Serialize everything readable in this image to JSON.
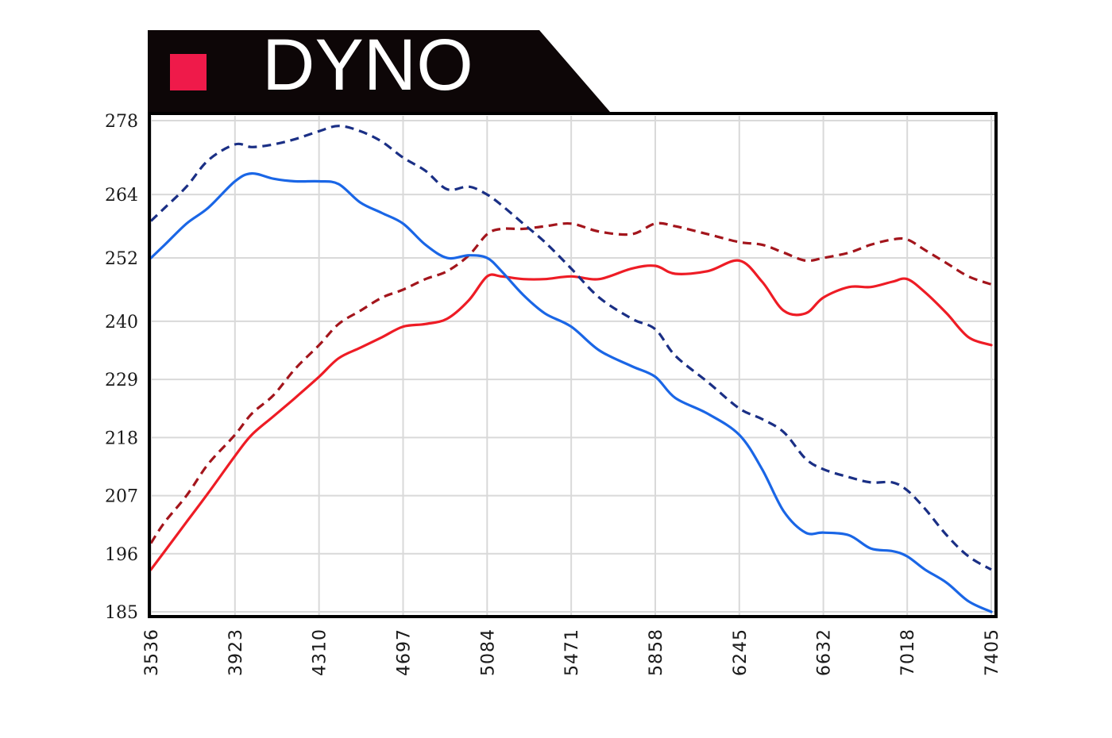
{
  "title": "DYNO",
  "colors": {
    "banner": "#0d0607",
    "accent": "#ef1a4a",
    "grid": "#d9d9d9",
    "frame": "#000000",
    "red": "#ee1c25",
    "dark_red": "#a3151c",
    "blue": "#1a66e6",
    "navy": "#1a2f85"
  },
  "chart_data": {
    "type": "line",
    "title": "DYNO",
    "xlabel": "",
    "ylabel": "",
    "x_ticks": [
      "3536",
      "3923",
      "4310",
      "4697",
      "5084",
      "5471",
      "5858",
      "6245",
      "6632",
      "7018",
      "7405"
    ],
    "y_ticks": [
      "278",
      "264",
      "252",
      "240",
      "229",
      "218",
      "207",
      "196",
      "185"
    ],
    "xlim": [
      3536,
      7405
    ],
    "ylim": [
      185,
      278
    ],
    "grid": true,
    "series": [
      {
        "style": "solid",
        "color": "#ee1c25",
        "x": [
          3536,
          3600,
          3700,
          3800,
          3923,
          4000,
          4100,
          4200,
          4310,
          4400,
          4500,
          4600,
          4697,
          4800,
          4900,
          5000,
          5084,
          5150,
          5250,
          5350,
          5471,
          5600,
          5750,
          5858,
          5950,
          6100,
          6245,
          6350,
          6450,
          6550,
          6632,
          6750,
          6850,
          6950,
          7018,
          7100,
          7200,
          7300,
          7405
        ],
        "y": [
          193,
          196.5,
          202,
          207.5,
          214.5,
          218.5,
          222,
          225.5,
          229.5,
          233,
          235,
          237,
          239,
          239.5,
          240.5,
          244,
          248.5,
          248.5,
          248,
          248,
          248.5,
          248,
          250,
          250.5,
          249,
          249.5,
          251.5,
          247.5,
          242,
          241.5,
          244.5,
          246.5,
          246.5,
          247.5,
          248,
          245.5,
          241.5,
          237,
          235.5
        ]
      },
      {
        "style": "dashed",
        "color": "#a3151c",
        "x": [
          3536,
          3600,
          3700,
          3800,
          3923,
          4000,
          4100,
          4200,
          4310,
          4400,
          4500,
          4600,
          4697,
          4800,
          4900,
          5000,
          5084,
          5150,
          5250,
          5350,
          5471,
          5600,
          5750,
          5858,
          5950,
          6100,
          6245,
          6350,
          6450,
          6550,
          6632,
          6750,
          6850,
          6950,
          7018,
          7100,
          7200,
          7300,
          7405
        ],
        "y": [
          198,
          202,
          207,
          213,
          218.5,
          222.5,
          226,
          231,
          235.5,
          239.5,
          242,
          244.5,
          246,
          248,
          249.5,
          252.5,
          256.5,
          257.5,
          257.5,
          258,
          258.5,
          257,
          256.5,
          258.5,
          258,
          256.5,
          255,
          254.5,
          253,
          251.5,
          252,
          253,
          254.5,
          255.5,
          255.5,
          253.5,
          251,
          248.5,
          247
        ]
      },
      {
        "style": "solid",
        "color": "#1a66e6",
        "x": [
          3536,
          3600,
          3700,
          3800,
          3923,
          4000,
          4100,
          4200,
          4310,
          4400,
          4500,
          4600,
          4697,
          4800,
          4900,
          5000,
          5084,
          5150,
          5250,
          5350,
          5471,
          5600,
          5750,
          5858,
          5950,
          6100,
          6245,
          6350,
          6450,
          6550,
          6632,
          6750,
          6850,
          6950,
          7018,
          7100,
          7200,
          7300,
          7405
        ],
        "y": [
          252,
          254.5,
          258.5,
          261.5,
          266.5,
          268,
          267,
          266.5,
          266.5,
          266,
          262.5,
          260.5,
          258.5,
          254.5,
          252,
          252.5,
          252,
          249.5,
          245,
          241.5,
          239,
          234.5,
          231.5,
          229.5,
          225.5,
          222.5,
          218.5,
          212,
          204,
          200,
          200,
          199.5,
          197,
          196.5,
          195.5,
          193,
          190.5,
          187,
          185
        ]
      },
      {
        "style": "dashed",
        "color": "#1a2f85",
        "x": [
          3536,
          3600,
          3700,
          3800,
          3923,
          4000,
          4100,
          4200,
          4310,
          4400,
          4500,
          4600,
          4697,
          4800,
          4900,
          5000,
          5084,
          5150,
          5250,
          5350,
          5471,
          5600,
          5750,
          5858,
          5950,
          6100,
          6245,
          6350,
          6450,
          6550,
          6632,
          6750,
          6850,
          6950,
          7018,
          7100,
          7200,
          7300,
          7405
        ],
        "y": [
          259,
          261.5,
          265.5,
          270.5,
          273.5,
          273,
          273.5,
          274.5,
          276,
          277,
          276,
          274,
          271,
          268.5,
          265,
          265.5,
          264,
          262,
          258.5,
          255,
          250,
          244.5,
          240.5,
          238.5,
          233.5,
          228.5,
          223.5,
          221.5,
          219,
          214,
          212,
          210.5,
          209.5,
          209.5,
          208,
          204.5,
          199.5,
          195.5,
          193
        ]
      }
    ]
  }
}
